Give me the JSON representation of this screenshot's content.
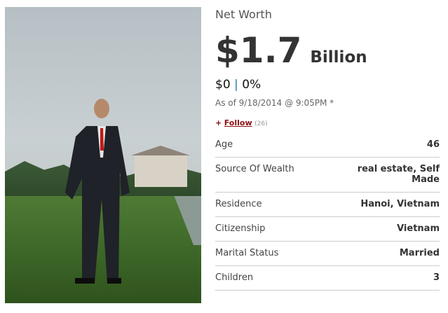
{
  "net_worth": {
    "title": "Net Worth",
    "value": "$1.7",
    "unit": "Billion",
    "change_amount": "$0",
    "separator": "|",
    "change_percent": "0%",
    "as_of": "As of 9/18/2014 @ 9:05PM *"
  },
  "follow": {
    "plus": "+",
    "label": "Follow",
    "count": "(26)"
  },
  "facts": [
    {
      "label": "Age",
      "value": "46"
    },
    {
      "label": "Source Of Wealth",
      "value": "real estate, Self Made"
    },
    {
      "label": "Residence",
      "value": "Hanoi, Vietnam"
    },
    {
      "label": "Citizenship",
      "value": "Vietnam"
    },
    {
      "label": "Marital Status",
      "value": "Married"
    },
    {
      "label": "Children",
      "value": "3"
    }
  ]
}
